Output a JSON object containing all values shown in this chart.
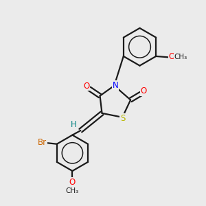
{
  "bg_color": "#ebebeb",
  "bond_color": "#1a1a1a",
  "N_color": "#0000ff",
  "S_color": "#b8b800",
  "O_color": "#ff0000",
  "Br_color": "#cc6600",
  "H_color": "#008080",
  "lw": 1.6,
  "figsize": [
    3.0,
    3.0
  ],
  "dpi": 100,
  "xlim": [
    0,
    10
  ],
  "ylim": [
    0,
    10
  ]
}
